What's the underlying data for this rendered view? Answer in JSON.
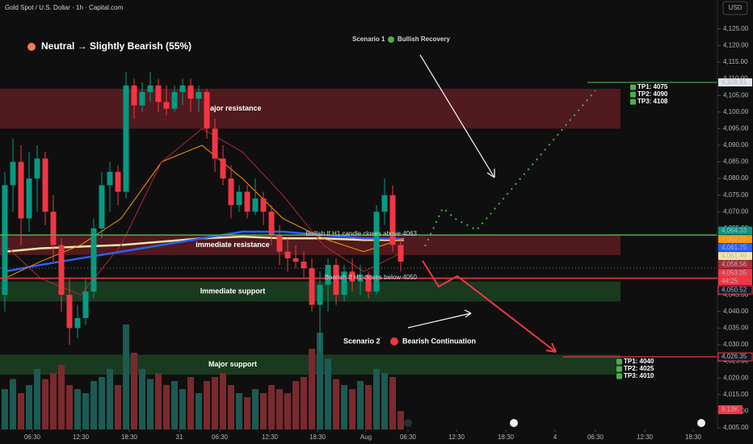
{
  "chart_data": {
    "type": "candlestick",
    "title": "Gold Spot / U.S. Dollar · 1h · Capital.com",
    "currency": "USD",
    "headline": "Neutral → Slightly Bearish (55%)",
    "scenario_1": {
      "label": "Scenario 1",
      "text": "Bullish Recovery"
    },
    "scenario_2": {
      "label": "Scenario 2",
      "text": "Bearish Continuation"
    },
    "ylim": [
      4004.5,
      4133.7
    ],
    "xlim": [
      0,
      88.8
    ],
    "yticks": [
      {
        "value": 4125,
        "label": "4,125.00"
      },
      {
        "value": 4120,
        "label": "4,120.00"
      },
      {
        "value": 4115,
        "label": "4,115.00"
      },
      {
        "value": 4110,
        "label": "4,110.00"
      },
      {
        "value": 4105,
        "label": "4,105.00"
      },
      {
        "value": 4100,
        "label": "4,100.00"
      },
      {
        "value": 4095,
        "label": "4,095.00"
      },
      {
        "value": 4090,
        "label": "4,090.00"
      },
      {
        "value": 4085,
        "label": "4,085.00"
      },
      {
        "value": 4080,
        "label": "4,080.00"
      },
      {
        "value": 4075,
        "label": "4,075.00"
      },
      {
        "value": 4070,
        "label": "4,070.00"
      },
      {
        "value": 4065,
        "label": "4,065.00"
      },
      {
        "value": 4060,
        "label": "4,060.00"
      },
      {
        "value": 4055,
        "label": "4,055.00"
      },
      {
        "value": 4050,
        "label": "4,050.00"
      },
      {
        "value": 4045,
        "label": "4,045.00"
      },
      {
        "value": 4040,
        "label": "4,040.00"
      },
      {
        "value": 4035,
        "label": "4,035.00"
      },
      {
        "value": 4030,
        "label": "4,030.00"
      },
      {
        "value": 4025,
        "label": "4,025.00"
      },
      {
        "value": 4020,
        "label": "4,020.00"
      },
      {
        "value": 4015,
        "label": "4,015.00"
      },
      {
        "value": 4010,
        "label": "4,010.00"
      },
      {
        "value": 4005,
        "label": "4,005.00"
      }
    ],
    "xticks": [
      {
        "value": 4,
        "label": "06:30"
      },
      {
        "value": 10,
        "label": "12:30"
      },
      {
        "value": 16,
        "label": "18:30"
      },
      {
        "value": 22.2,
        "label": "31"
      },
      {
        "value": 27.2,
        "label": "06:30"
      },
      {
        "value": 33.4,
        "label": "12:30"
      },
      {
        "value": 39.3,
        "label": "18:30"
      },
      {
        "value": 45.3,
        "label": "Aug"
      },
      {
        "value": 50.5,
        "label": "06:30"
      },
      {
        "value": 56.5,
        "label": "12:30"
      },
      {
        "value": 62.6,
        "label": "18:30"
      },
      {
        "value": 68.7,
        "label": "4"
      },
      {
        "value": 73.7,
        "label": "06:30"
      },
      {
        "value": 79.8,
        "label": "12:30"
      },
      {
        "value": 85.8,
        "label": "18:30"
      }
    ],
    "up_color": "#089981",
    "down_color": "#f23645",
    "volume_up_color": "#1c5a53",
    "volume_down_color": "#7a2a2e",
    "candles": {
      "open": [
        4045,
        4078,
        4085,
        4068,
        4080,
        4086,
        4070,
        4060,
        4045,
        4035,
        4038,
        4046,
        4065,
        4078,
        4082,
        4076,
        4108,
        4102,
        4106,
        4108,
        4103,
        4101,
        4106,
        4108,
        4104,
        4106,
        4095,
        4086,
        4080,
        4072,
        4076,
        4070,
        4074,
        4070,
        4063,
        4058,
        4056,
        4055,
        4053,
        4042,
        4048,
        4054,
        4045,
        4052,
        4049,
        4051,
        4046,
        4070,
        4075,
        4060
      ],
      "high": [
        4082,
        4092,
        4090,
        4088,
        4090,
        4088,
        4075,
        4062,
        4050,
        4042,
        4050,
        4068,
        4082,
        4085,
        4084,
        4112,
        4110,
        4109,
        4112,
        4110,
        4108,
        4108,
        4110,
        4110,
        4108,
        4107,
        4098,
        4090,
        4084,
        4078,
        4078,
        4080,
        4076,
        4072,
        4066,
        4062,
        4060,
        4058,
        4056,
        4052,
        4056,
        4056,
        4054,
        4056,
        4054,
        4052,
        4072,
        4080,
        4078,
        4062
      ],
      "low": [
        4040,
        4070,
        4060,
        4064,
        4070,
        4066,
        4055,
        4040,
        4030,
        4032,
        4036,
        4044,
        4062,
        4070,
        4072,
        4074,
        4098,
        4100,
        4103,
        4100,
        4099,
        4100,
        4102,
        4100,
        4100,
        4092,
        4082,
        4078,
        4068,
        4070,
        4068,
        4069,
        4066,
        4060,
        4054,
        4052,
        4053,
        4050,
        4040,
        4028,
        4040,
        4042,
        4043,
        4046,
        4045,
        4044,
        4045,
        4066,
        4058,
        4052
      ],
      "close": [
        4078,
        4085,
        4068,
        4080,
        4086,
        4070,
        4060,
        4045,
        4035,
        4038,
        4046,
        4065,
        4078,
        4082,
        4076,
        4108,
        4102,
        4106,
        4108,
        4103,
        4101,
        4106,
        4108,
        4104,
        4106,
        4095,
        4086,
        4080,
        4072,
        4076,
        4070,
        4074,
        4070,
        4063,
        4058,
        4056,
        4055,
        4053,
        4042,
        4048,
        4054,
        4045,
        4052,
        4049,
        4051,
        4046,
        4070,
        4075,
        4060,
        4055
      ],
      "volume": [
        20,
        25,
        18,
        22,
        30,
        25,
        28,
        32,
        22,
        20,
        18,
        24,
        26,
        30,
        22,
        52,
        38,
        30,
        25,
        28,
        22,
        24,
        20,
        26,
        18,
        24,
        26,
        28,
        22,
        18,
        16,
        20,
        18,
        22,
        20,
        18,
        24,
        26,
        40,
        48,
        35,
        25,
        22,
        20,
        24,
        22,
        30,
        28,
        26,
        9.13
      ]
    },
    "last_volume_label": "9.13K",
    "overlays": [
      {
        "color": "#f5e3a8",
        "x": [
          0.6,
          5,
          10,
          15,
          20,
          25,
          30,
          35,
          40,
          45,
          50
        ],
        "values": [
          4058,
          4059,
          4059.5,
          4060,
          4061,
          4062,
          4062.5,
          4062,
          4062,
          4061.5,
          4061.5
        ]
      },
      {
        "color": "#2962ff",
        "x": [
          0.6,
          5,
          10,
          15,
          20,
          25,
          30,
          35,
          40,
          45,
          50
        ],
        "values": [
          4052,
          4054,
          4056,
          4058,
          4060,
          4062,
          4064,
          4064,
          4063,
          4062,
          4061.8
        ]
      },
      {
        "color": "#ff9800",
        "x": [
          0.6,
          5,
          10,
          15,
          20,
          25,
          30,
          35,
          40,
          45,
          50
        ],
        "values": [
          4050,
          4055,
          4060,
          4068,
          4085,
          4090,
          4080,
          4068,
          4062,
          4058,
          4062
        ]
      },
      {
        "color": "#b22833",
        "x": [
          0.6,
          5,
          10,
          15,
          20,
          25,
          30,
          35,
          40,
          45,
          50
        ],
        "values": [
          4060,
          4050,
          4045,
          4060,
          4085,
          4095,
          4088,
          4075,
          4060,
          4052,
          4058
        ]
      }
    ],
    "zones": [
      {
        "label": "Major resistance",
        "low": 4095,
        "high": 4107,
        "x_end": 76.8,
        "color": "rgba(160,40,48,0.45)"
      },
      {
        "label": "immediate resistance",
        "low": 4057,
        "high": 4063,
        "x_end": 76.8,
        "color": "rgba(160,40,48,0.45)"
      },
      {
        "label": "Immediate support",
        "low": 4043,
        "high": 4049,
        "x_end": 76.8,
        "color": "rgba(40,110,50,0.45)"
      },
      {
        "label": "Major support",
        "low": 4021,
        "high": 4027,
        "x_end": 76.8,
        "color": "rgba(40,110,50,0.45)"
      }
    ],
    "rules": [
      {
        "value": 4063,
        "color": "#4caf50",
        "text": "Bullish If  H1 candle closes above 4063"
      },
      {
        "value": 4050,
        "color": "#f23645",
        "text": "Bearish If H1 closes below 4050"
      }
    ],
    "targets": [
      {
        "value": 4108.91,
        "x_start": 72.7,
        "color": "#4caf50",
        "items": [
          "TP1: 4075",
          "TP2: 4090",
          "TP3: 4108"
        ]
      },
      {
        "value": 4026.35,
        "x_start": 69.7,
        "color": "#f23645",
        "items": [
          "TP1: 4040",
          "TP2: 4025",
          "TP3: 4010"
        ]
      }
    ],
    "price_labels": [
      {
        "value": 4108.91,
        "label": "4,108.91",
        "bg": "#e0e3eb",
        "fg": "#131722"
      },
      {
        "value": 4064.33,
        "label": "4,064.33",
        "bg": "#089981",
        "fg": "#ffffff"
      },
      {
        "value": 4062.23,
        "label": "4,062.23",
        "bg": "#ff9800",
        "fg": "#ffffff"
      },
      {
        "value": 4061.75,
        "label": "4,061.75",
        "bg": "#2962ff",
        "fg": "#ffffff"
      },
      {
        "value": 4061.49,
        "label": "4,061.49",
        "bg": "#f5e3a8",
        "fg": "#131722"
      },
      {
        "value": 4058.56,
        "label": "4,058.56",
        "bg": "#b22833",
        "fg": "#ffffff"
      },
      {
        "value": 4053.05,
        "label": "4,053.05",
        "bg": "#f23645",
        "fg": "#ffffff"
      },
      {
        "value": 4050.52,
        "label": "4,050.52",
        "bg": "#131722",
        "fg": "#ffffff"
      },
      {
        "value": 4026.35,
        "label": "4,026.35",
        "bg": "#131722",
        "fg": "#ffffff"
      }
    ],
    "countdown": "44:25"
  }
}
